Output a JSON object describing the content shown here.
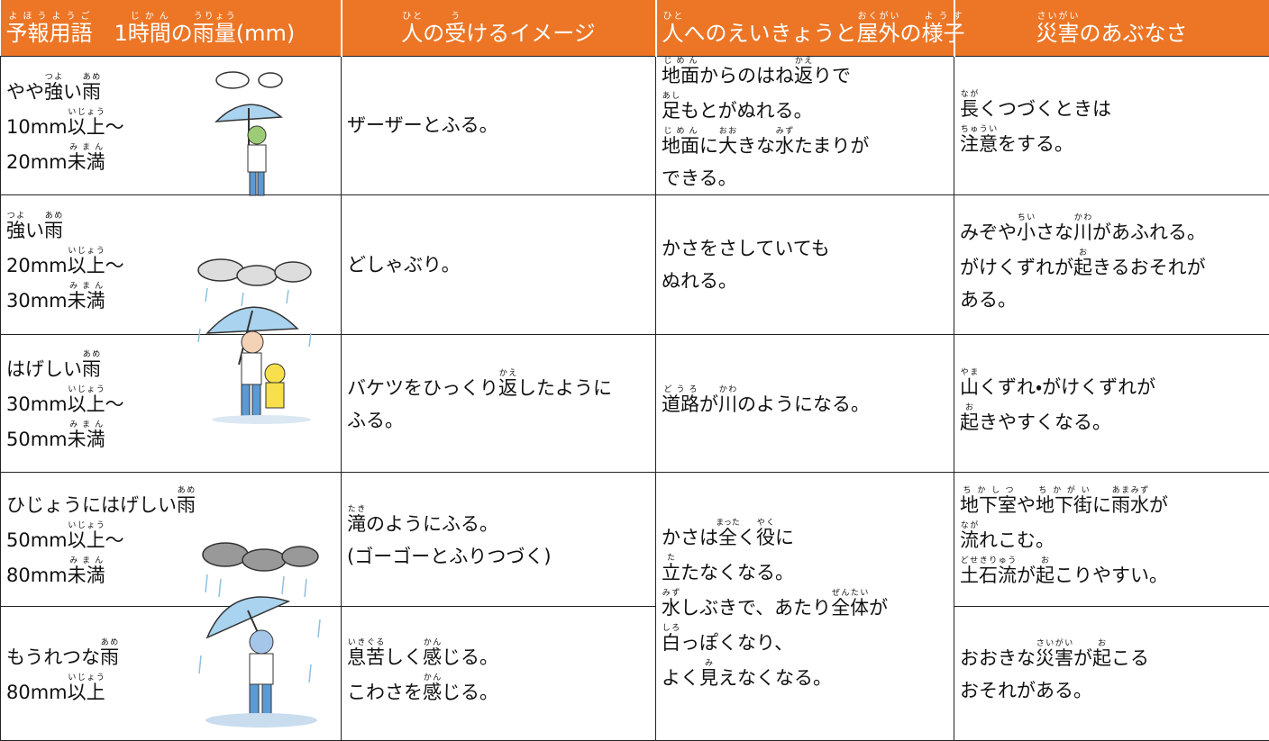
{
  "header": [
    {
      "lines": [
        [
          {
            "b": "予報用語",
            "r": "よほうようご"
          },
          "　1",
          {
            "b": "時間",
            "r": "じかん"
          },
          "の",
          {
            "b": "雨量",
            "r": "うりょう"
          },
          "(mm)"
        ]
      ]
    },
    {
      "lines": [
        [
          {
            "b": "人",
            "r": "ひと"
          },
          "の",
          {
            "b": "受",
            "r": "う"
          },
          "けるイメージ"
        ]
      ]
    },
    {
      "lines": [
        [
          {
            "b": "人",
            "r": "ひと"
          },
          "へのえいきょうと",
          {
            "b": "屋外",
            "r": "おくがい"
          },
          "の",
          {
            "b": "様子",
            "r": "ようす"
          }
        ]
      ]
    },
    {
      "lines": [
        [
          {
            "b": "災害",
            "r": "さいがい"
          },
          "のあぶなさ"
        ]
      ]
    }
  ],
  "rows": [
    {
      "cells": [
        {
          "lines": [
            [
              "やや",
              {
                "b": "強",
                "r": "つよ"
              },
              "い",
              {
                "b": "雨",
                "r": "あめ"
              }
            ],
            [
              "10mm",
              {
                "b": "以上",
                "r": "いじょう"
              },
              "〜"
            ],
            [
              "20mm",
              {
                "b": "未満",
                "r": "みまん"
              }
            ]
          ]
        },
        {
          "lines": [
            [
              "ザーザーとふる。"
            ]
          ]
        },
        {
          "lines": [
            [
              {
                "b": "地面",
                "r": "じめん"
              },
              "からのはね",
              {
                "b": "返",
                "r": "かえ"
              },
              "りで"
            ],
            [
              {
                "b": "足",
                "r": "あし"
              },
              "もとがぬれる。"
            ],
            [
              {
                "b": "地面",
                "r": "じめん"
              },
              "に",
              {
                "b": "大",
                "r": "おお"
              },
              "きな",
              {
                "b": "水",
                "r": "みず"
              },
              "たまりが"
            ],
            [
              "できる。"
            ]
          ]
        },
        {
          "lines": [
            [
              {
                "b": "長",
                "r": "なが"
              },
              "くつづくときは"
            ],
            [
              {
                "b": "注意",
                "r": "ちゅうい"
              },
              "をする。"
            ]
          ]
        }
      ]
    },
    {
      "cells": [
        {
          "lines": [
            [
              {
                "b": "強",
                "r": "つよ"
              },
              "い",
              {
                "b": "雨",
                "r": "あめ"
              }
            ],
            [
              "20mm",
              {
                "b": "以上",
                "r": "いじょう"
              },
              "〜"
            ],
            [
              "30mm",
              {
                "b": "未満",
                "r": "みまん"
              }
            ]
          ]
        },
        {
          "lines": [
            [
              "どしゃぶり。"
            ]
          ]
        },
        {
          "lines": [
            [
              "かさをさしていても"
            ],
            [
              "ぬれる。"
            ]
          ]
        },
        {
          "lines": [
            [
              "みぞや",
              {
                "b": "小",
                "r": "ちい"
              },
              "さな",
              {
                "b": "川",
                "r": "かわ"
              },
              "があふれる。"
            ],
            [
              "がけくずれが",
              {
                "b": "起",
                "r": "お"
              },
              "きるおそれが"
            ],
            [
              "ある。"
            ]
          ]
        }
      ]
    },
    {
      "cells": [
        {
          "lines": [
            [
              "はげしい",
              {
                "b": "雨",
                "r": "あめ"
              }
            ],
            [
              "30mm",
              {
                "b": "以上",
                "r": "いじょう"
              },
              "〜"
            ],
            [
              "50mm",
              {
                "b": "未満",
                "r": "みまん"
              }
            ]
          ]
        },
        {
          "lines": [
            [
              "バケツをひっくり",
              {
                "b": "返",
                "r": "かえ"
              },
              "したように"
            ],
            [
              "ふる。"
            ]
          ]
        },
        {
          "lines": [
            [
              {
                "b": "道路",
                "r": "どうろ"
              },
              "が",
              {
                "b": "川",
                "r": "かわ"
              },
              "のようになる。"
            ]
          ]
        },
        {
          "lines": [
            [
              {
                "b": "山",
                "r": "やま"
              },
              "くずれ・がけくずれが"
            ],
            [
              {
                "b": "起",
                "r": "お"
              },
              "きやすくなる。"
            ]
          ]
        }
      ]
    },
    {
      "cells": [
        {
          "lines": [
            [
              "ひじょうにはげしい",
              {
                "b": "雨",
                "r": "あめ"
              }
            ],
            [
              "50mm",
              {
                "b": "以上",
                "r": "いじょう"
              },
              "〜"
            ],
            [
              "80mm",
              {
                "b": "未満",
                "r": "みまん"
              }
            ]
          ]
        },
        {
          "lines": [
            [
              {
                "b": "滝",
                "r": "たき"
              },
              "のようにふる。"
            ],
            [
              "(ゴーゴーとふりつづく)"
            ]
          ]
        },
        {
          "lines": [
            [
              "かさは",
              {
                "b": "全",
                "r": "まった"
              },
              "く",
              {
                "b": "役",
                "r": "やく"
              },
              "に"
            ],
            [
              {
                "b": "立",
                "r": "た"
              },
              "たなくなる。"
            ],
            [
              {
                "b": "水",
                "r": "みず"
              },
              "しぶきで、あたり",
              {
                "b": "全体",
                "r": "ぜんたい"
              },
              "が"
            ],
            [
              {
                "b": "白",
                "r": "しろ"
              },
              "っぽくなり、"
            ],
            [
              "よく",
              {
                "b": "見",
                "r": "み"
              },
              "えなくなる。"
            ]
          ]
        },
        {
          "lines": [
            [
              {
                "b": "地下室",
                "r": "ちかしつ"
              },
              "や",
              {
                "b": "地下街",
                "r": "ちかがい"
              },
              "に",
              {
                "b": "雨水",
                "r": "あまみず"
              },
              "が"
            ],
            [
              {
                "b": "流",
                "r": "なが"
              },
              "れこむ。"
            ],
            [
              {
                "b": "土石流",
                "r": "どせきりゅう"
              },
              "が",
              {
                "b": "起",
                "r": "お"
              },
              "こりやすい。"
            ]
          ]
        }
      ]
    },
    {
      "cells": [
        {
          "lines": [
            [
              "もうれつな",
              {
                "b": "雨",
                "r": "あめ"
              }
            ],
            [
              "80mm",
              {
                "b": "以上",
                "r": "いじょう"
              }
            ]
          ]
        },
        {
          "lines": [
            [
              {
                "b": "息苦",
                "r": "いきぐる"
              },
              "しく",
              {
                "b": "感",
                "r": "かん"
              },
              "じる。"
            ],
            [
              "こわさを",
              {
                "b": "感",
                "r": "かん"
              },
              "じる。"
            ]
          ]
        },
        {
          "lines": [
            [
              "おおきな",
              {
                "b": "災害",
                "r": "さいがい"
              },
              "が",
              {
                "b": "起",
                "r": "お"
              },
              "こる"
            ],
            [
              "おそれがある。"
            ]
          ]
        }
      ]
    }
  ]
}
